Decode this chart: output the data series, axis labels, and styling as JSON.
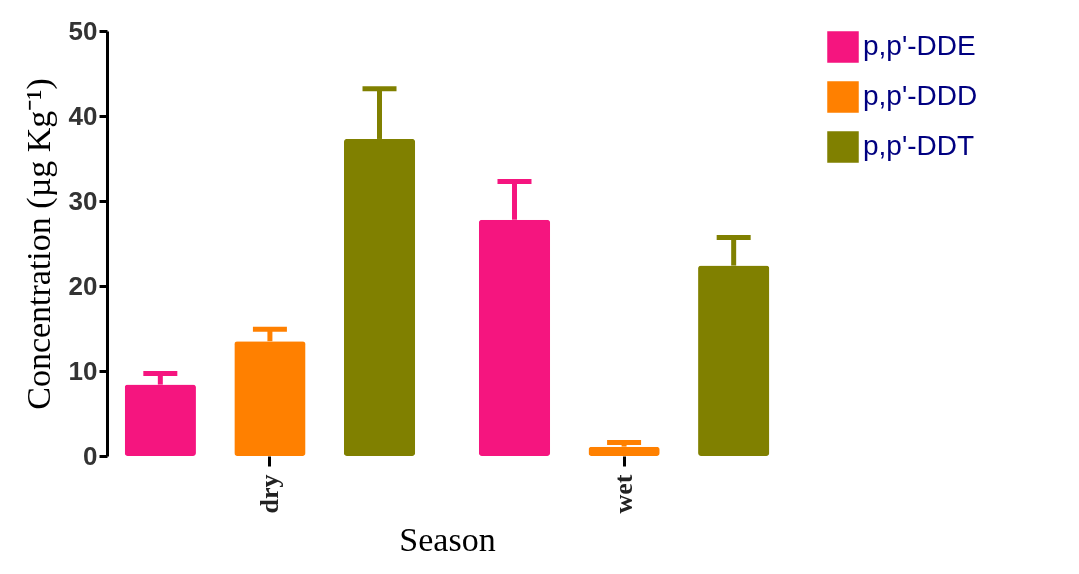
{
  "chart_data": {
    "type": "bar",
    "xlabel": "Season",
    "ylabel": "Concentration (µg Kg⁻¹)",
    "categories": [
      "dry",
      "wet"
    ],
    "series": [
      {
        "name": "p,p'-DDE",
        "color": "#f5157f",
        "values": [
          8.4,
          27.8
        ],
        "errors": [
          [
            8.4,
            9.7
          ],
          [
            27.8,
            32.3
          ]
        ]
      },
      {
        "name": "p,p'-DDD",
        "color": "#ff8000",
        "values": [
          13.5,
          1.1
        ],
        "errors": [
          [
            13.5,
            14.9
          ],
          [
            1.1,
            1.6
          ]
        ]
      },
      {
        "name": "p,p'-DDT",
        "color": "#808000",
        "values": [
          37.3,
          22.4
        ],
        "errors": [
          [
            37.3,
            43.2
          ],
          [
            22.4,
            25.7
          ]
        ]
      }
    ],
    "ylim": [
      0,
      50
    ],
    "yticks": [
      0,
      10,
      20,
      30,
      40,
      50
    ],
    "grid": false,
    "legend": "top right"
  }
}
